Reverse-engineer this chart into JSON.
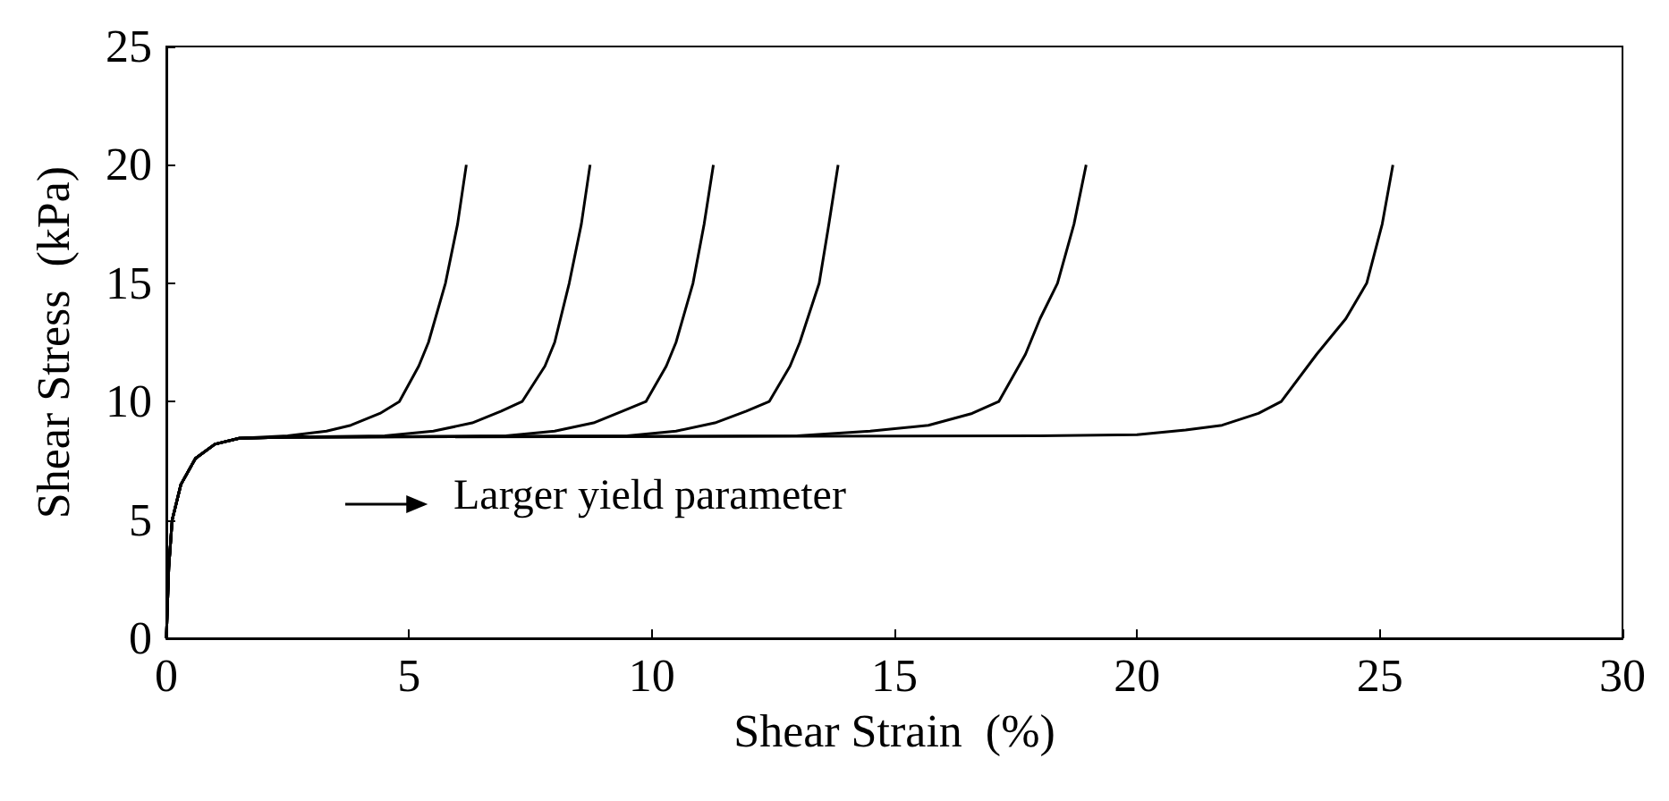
{
  "chart_data": {
    "type": "line",
    "xlabel": "Shear Strain  (%)",
    "ylabel": "Shear Stress  (kPa)",
    "xlim": [
      0,
      30
    ],
    "xticks": [
      0,
      5,
      10,
      15,
      20,
      25,
      30
    ],
    "ylim": [
      0,
      25
    ],
    "yticks": [
      0,
      5,
      10,
      15,
      20,
      25
    ],
    "marker": "none",
    "annotations": [
      "Larger yield parameter"
    ],
    "series": [
      {
        "color": "#000000",
        "x": [
          0,
          0.05,
          0.12,
          0.3,
          0.6,
          1,
          1.5,
          2.5,
          3.3,
          3.8,
          4.4,
          4.8,
          5.2,
          5.4,
          5.75,
          6.0,
          6.18
        ],
        "values": [
          0,
          3,
          5,
          6.5,
          7.6,
          8.2,
          8.45,
          8.55,
          8.75,
          9,
          9.5,
          10,
          11.5,
          12.5,
          15,
          17.5,
          20
        ]
      },
      {
        "color": "#000000",
        "x": [
          0,
          0.05,
          0.12,
          0.3,
          0.6,
          1,
          1.5,
          2.5,
          4.5,
          5.5,
          6.3,
          6.9,
          7.33,
          7.8,
          8.0,
          8.3,
          8.55,
          8.73
        ],
        "values": [
          0,
          3,
          5,
          6.5,
          7.6,
          8.2,
          8.45,
          8.5,
          8.55,
          8.75,
          9.1,
          9.6,
          10,
          11.5,
          12.5,
          15,
          17.5,
          20
        ]
      },
      {
        "color": "#000000",
        "x": [
          0,
          0.05,
          0.12,
          0.3,
          0.6,
          1,
          1.5,
          2.5,
          7,
          8,
          8.8,
          9.4,
          9.88,
          10.3,
          10.5,
          10.85,
          11.08,
          11.27
        ],
        "values": [
          0,
          3,
          5,
          6.5,
          7.6,
          8.2,
          8.45,
          8.5,
          8.55,
          8.75,
          9.1,
          9.6,
          10,
          11.5,
          12.5,
          15,
          17.5,
          20
        ]
      },
      {
        "color": "#000000",
        "x": [
          0,
          0.05,
          0.12,
          0.3,
          0.6,
          1,
          1.5,
          2.5,
          9.5,
          10.5,
          11.3,
          11.95,
          12.42,
          12.85,
          13.05,
          13.45,
          13.65,
          13.84
        ],
        "values": [
          0,
          3,
          5,
          6.5,
          7.6,
          8.2,
          8.45,
          8.5,
          8.55,
          8.75,
          9.1,
          9.6,
          10,
          11.5,
          12.5,
          15,
          17.5,
          20
        ]
      },
      {
        "color": "#000000",
        "x": [
          0,
          0.05,
          0.12,
          0.3,
          0.6,
          1,
          1.5,
          2.5,
          13,
          14.5,
          15.7,
          16.6,
          17.15,
          17.7,
          18.0,
          18.36,
          18.7,
          18.95
        ],
        "values": [
          0,
          3,
          5,
          6.5,
          7.6,
          8.2,
          8.45,
          8.5,
          8.55,
          8.75,
          9,
          9.5,
          10,
          12,
          13.5,
          15,
          17.5,
          20
        ]
      },
      {
        "color": "#000000",
        "x": [
          0,
          0.05,
          0.12,
          0.3,
          0.6,
          1,
          1.5,
          2.5,
          18,
          20,
          21,
          21.75,
          22.5,
          22.97,
          23.7,
          24.3,
          24.73,
          25.05,
          25.27
        ],
        "values": [
          0,
          3,
          5,
          6.5,
          7.6,
          8.2,
          8.45,
          8.5,
          8.55,
          8.6,
          8.8,
          9,
          9.5,
          10,
          12,
          13.5,
          15,
          17.5,
          20
        ]
      }
    ]
  }
}
